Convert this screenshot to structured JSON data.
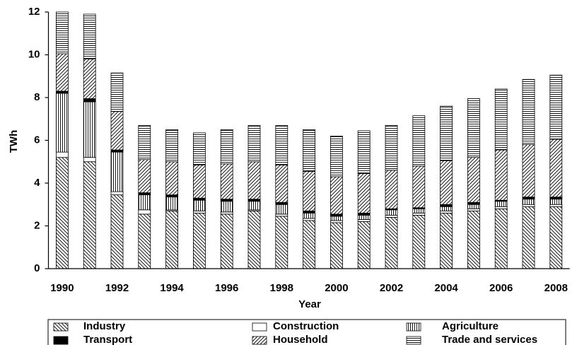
{
  "chart_data": {
    "type": "bar",
    "stacked": true,
    "x_label": "Year",
    "y_label": "TWh",
    "categories": [
      "1990",
      null,
      "1992",
      null,
      "1994",
      null,
      "1996",
      null,
      "1998",
      null,
      "2000",
      null,
      "2002",
      null,
      "2004",
      null,
      "2006",
      null,
      "2008"
    ],
    "series": [
      {
        "name": "Industry",
        "values": [
          5.2,
          5.0,
          3.45,
          2.55,
          2.7,
          2.6,
          2.55,
          2.7,
          2.45,
          2.25,
          2.15,
          2.2,
          2.4,
          2.5,
          2.6,
          2.7,
          2.8,
          2.9,
          2.9
        ]
      },
      {
        "name": "Construction",
        "values": [
          0.25,
          0.2,
          0.15,
          0.2,
          0.05,
          0.1,
          0.1,
          0.05,
          0.1,
          0.1,
          0.1,
          0.1,
          0.1,
          0.1,
          0.1,
          0.1,
          0.1,
          0.1,
          0.1
        ]
      },
      {
        "name": "Agriculture",
        "values": [
          2.75,
          2.6,
          1.85,
          0.7,
          0.6,
          0.5,
          0.5,
          0.4,
          0.45,
          0.25,
          0.2,
          0.2,
          0.25,
          0.2,
          0.2,
          0.2,
          0.25,
          0.25,
          0.25
        ]
      },
      {
        "name": "Transport",
        "values": [
          0.1,
          0.15,
          0.1,
          0.1,
          0.1,
          0.1,
          0.1,
          0.1,
          0.1,
          0.1,
          0.1,
          0.1,
          0.05,
          0.05,
          0.1,
          0.1,
          0.05,
          0.1,
          0.1
        ]
      },
      {
        "name": "Household",
        "values": [
          1.75,
          1.85,
          1.8,
          1.55,
          1.55,
          1.55,
          1.65,
          1.75,
          1.75,
          1.85,
          1.75,
          1.85,
          1.8,
          1.95,
          2.05,
          2.1,
          2.35,
          2.45,
          2.7
        ]
      },
      {
        "name": "Trade and services",
        "values": [
          1.95,
          2.1,
          1.8,
          1.6,
          1.5,
          1.5,
          1.6,
          1.7,
          1.85,
          1.95,
          1.9,
          2.0,
          2.1,
          2.35,
          2.55,
          2.75,
          2.85,
          3.05,
          3.0
        ]
      }
    ],
    "ylim": [
      0,
      12
    ],
    "yticks": [
      0,
      2,
      4,
      6,
      8,
      10,
      12
    ],
    "grid": false
  }
}
